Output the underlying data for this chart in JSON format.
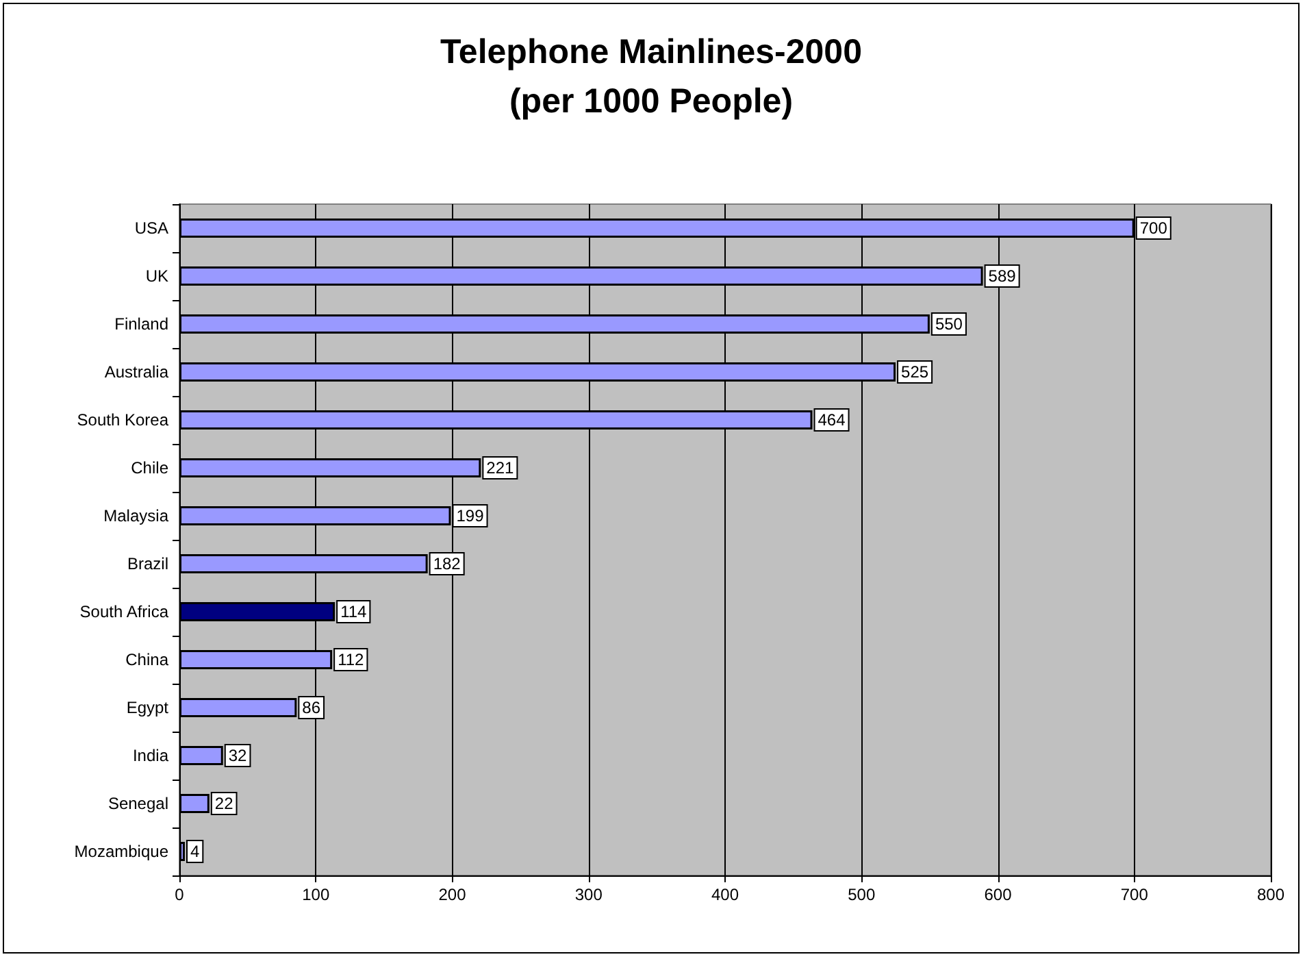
{
  "chart_data": {
    "type": "bar",
    "orientation": "horizontal",
    "title": "Telephone Mainlines-2000\n(per 1000 People)",
    "categories": [
      "USA",
      "UK",
      "Finland",
      "Australia",
      "South Korea",
      "Chile",
      "Malaysia",
      "Brazil",
      "South Africa",
      "China",
      "Egypt",
      "India",
      "Senegal",
      "Mozambique"
    ],
    "values": [
      700,
      589,
      550,
      525,
      464,
      221,
      199,
      182,
      114,
      112,
      86,
      32,
      22,
      4
    ],
    "colors": [
      "#9999ff",
      "#9999ff",
      "#9999ff",
      "#9999ff",
      "#9999ff",
      "#9999ff",
      "#9999ff",
      "#9999ff",
      "#000080",
      "#9999ff",
      "#9999ff",
      "#9999ff",
      "#9999ff",
      "#9999ff"
    ],
    "xlim": [
      0,
      800
    ],
    "xticks": [
      0,
      100,
      200,
      300,
      400,
      500,
      600,
      700,
      800
    ],
    "grid": "x",
    "data_labels": true
  }
}
